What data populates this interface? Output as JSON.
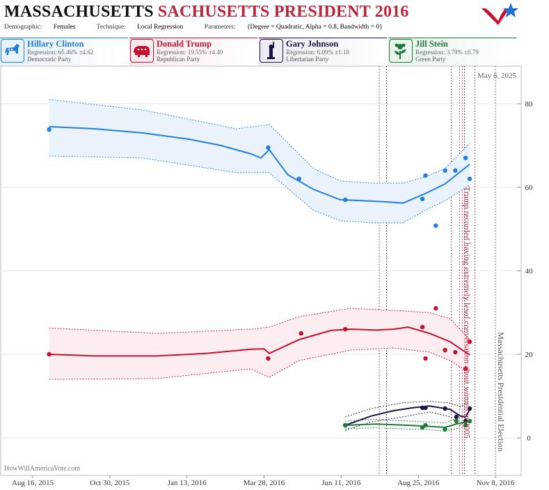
{
  "header": {
    "title_part1": "MASSACHUSETTS",
    "title_part2": "SACHUSETTS PRESIDENT 2016",
    "demographic_label": "Demographic:",
    "demographic_value": "Females",
    "technique_label": "Technique:",
    "technique_value": "Local Regression",
    "parameters_label": "Parameters:",
    "parameters_value": "{Degree = Quadratic, Alpha = 0.8, Bandwidth = 0}"
  },
  "candidates": [
    {
      "name": "Hillary Clinton",
      "regression": "Regression: 65.46% ±4.62",
      "party": "Democratic Party",
      "color": "#1e7fe0",
      "bg": "#e8f1fb",
      "icon": "donkey-icon"
    },
    {
      "name": "Donald Trump",
      "regression": "Regression: 19.55% ±4.49",
      "party": "Republican Party",
      "color": "#c8102e",
      "bg": "#fbe9ec",
      "icon": "elephant-icon"
    },
    {
      "name": "Gary Johnson",
      "regression": "Regression: 6.09% ±1.18",
      "party": "Libertarian Party",
      "color": "#1a1446",
      "bg": "#ecebf2",
      "icon": "liberty-statue-icon"
    },
    {
      "name": "Jill Stein",
      "regression": "Regression: 3.79% ±0.79",
      "party": "Green Party",
      "color": "#1f7a3a",
      "bg": "#e8f3ec",
      "icon": "flower-icon"
    }
  ],
  "chart_data": {
    "type": "line",
    "date_label": "May 6, 2025",
    "x_ticks": [
      "Aug 16, 2015",
      "Oct 30, 2015",
      "Jan 13, 2016",
      "Mar 28, 2016",
      "Jun 11, 2016",
      "Aug 25, 2016",
      "Nov 8, 2016"
    ],
    "y_ticks": [
      0,
      20,
      40,
      60,
      80
    ],
    "ylim": [
      -9,
      89
    ],
    "annotations": [
      {
        "text": "Trump recorded having extremely lewd conversation about women in 2005",
        "date": "2016-10-07",
        "color": "#b8253d"
      },
      {
        "text": "Massachusetts Presidential Election",
        "date": "2016-11-08",
        "color": "#555555"
      }
    ],
    "event_lines": [
      {
        "date": "2016-07-18",
        "color": "#b8253d"
      },
      {
        "date": "2016-07-25",
        "color": "#1a1446"
      },
      {
        "date": "2016-09-26",
        "color": "#b8253d"
      },
      {
        "date": "2016-10-04",
        "color": "#b8253d"
      },
      {
        "date": "2016-10-07",
        "color": "#b8253d"
      },
      {
        "date": "2016-10-09",
        "color": "#1a1446"
      },
      {
        "date": "2016-10-19",
        "color": "#b8253d"
      },
      {
        "date": "2016-11-08",
        "color": "#555555"
      }
    ],
    "series": [
      {
        "name": "Hillary Clinton",
        "color": "#1e7fe0",
        "fill": "#eaf3fc",
        "points": [
          [
            "2015-09-01",
            73.8
          ],
          [
            "2016-04-01",
            69.5
          ],
          [
            "2016-05-01",
            62.0
          ],
          [
            "2016-06-15",
            57.0
          ],
          [
            "2016-08-29",
            57.2
          ],
          [
            "2016-09-01",
            62.8
          ],
          [
            "2016-09-11",
            50.8
          ],
          [
            "2016-09-20",
            64.0
          ],
          [
            "2016-09-30",
            64.0
          ],
          [
            "2016-10-10",
            67.0
          ],
          [
            "2016-10-14",
            62.0
          ]
        ],
        "line": [
          [
            "2015-09-01",
            74.5
          ],
          [
            "2015-10-15",
            74.0
          ],
          [
            "2015-12-01",
            73.0
          ],
          [
            "2016-01-15",
            71.5
          ],
          [
            "2016-02-15",
            70.0
          ],
          [
            "2016-03-15",
            68.0
          ],
          [
            "2016-03-25",
            67.0
          ],
          [
            "2016-04-02",
            69.0
          ],
          [
            "2016-04-20",
            63.0
          ],
          [
            "2016-05-15",
            59.5
          ],
          [
            "2016-06-10",
            57.0
          ],
          [
            "2016-07-01",
            56.8
          ],
          [
            "2016-07-25",
            56.5
          ],
          [
            "2016-08-10",
            56.2
          ],
          [
            "2016-09-01",
            58.5
          ],
          [
            "2016-09-20",
            60.8
          ],
          [
            "2016-10-14",
            65.5
          ]
        ],
        "upper": [
          [
            "2015-09-01",
            81.0
          ],
          [
            "2015-12-01",
            78.5
          ],
          [
            "2016-03-01",
            74.0
          ],
          [
            "2016-04-02",
            75.0
          ],
          [
            "2016-05-15",
            64.5
          ],
          [
            "2016-06-10",
            61.5
          ],
          [
            "2016-07-10",
            61.0
          ],
          [
            "2016-08-10",
            61.0
          ],
          [
            "2016-09-01",
            62.5
          ],
          [
            "2016-09-20",
            64.5
          ],
          [
            "2016-10-14",
            70.5
          ]
        ],
        "lower": [
          [
            "2015-09-01",
            67.5
          ],
          [
            "2015-12-01",
            67.0
          ],
          [
            "2016-03-01",
            63.5
          ],
          [
            "2016-04-02",
            63.5
          ],
          [
            "2016-05-15",
            54.5
          ],
          [
            "2016-06-10",
            52.0
          ],
          [
            "2016-07-10",
            51.5
          ],
          [
            "2016-08-10",
            51.5
          ],
          [
            "2016-09-01",
            54.5
          ],
          [
            "2016-09-20",
            56.8
          ],
          [
            "2016-10-14",
            60.5
          ]
        ]
      },
      {
        "name": "Donald Trump",
        "color": "#c8102e",
        "fill": "#fcedf0",
        "points": [
          [
            "2015-09-01",
            20.0
          ],
          [
            "2016-04-01",
            19.0
          ],
          [
            "2016-05-03",
            25.0
          ],
          [
            "2016-06-15",
            26.0
          ],
          [
            "2016-08-29",
            26.5
          ],
          [
            "2016-09-01",
            19.0
          ],
          [
            "2016-09-11",
            31.0
          ],
          [
            "2016-09-20",
            21.0
          ],
          [
            "2016-09-30",
            20.5
          ],
          [
            "2016-10-10",
            16.5
          ],
          [
            "2016-10-14",
            23.0
          ]
        ],
        "line": [
          [
            "2015-09-01",
            20.0
          ],
          [
            "2015-10-15",
            19.6
          ],
          [
            "2015-12-15",
            19.6
          ],
          [
            "2016-02-01",
            20.2
          ],
          [
            "2016-03-15",
            21.2
          ],
          [
            "2016-03-28",
            21.3
          ],
          [
            "2016-04-02",
            20.2
          ],
          [
            "2016-05-01",
            23.5
          ],
          [
            "2016-06-01",
            25.7
          ],
          [
            "2016-06-20",
            26.0
          ],
          [
            "2016-07-15",
            25.8
          ],
          [
            "2016-08-01",
            26.0
          ],
          [
            "2016-08-15",
            26.5
          ],
          [
            "2016-09-05",
            25.0
          ],
          [
            "2016-09-25",
            23.0
          ],
          [
            "2016-10-14",
            19.8
          ]
        ],
        "upper": [
          [
            "2015-09-01",
            26.3
          ],
          [
            "2015-12-15",
            25.0
          ],
          [
            "2016-03-15",
            26.0
          ],
          [
            "2016-04-02",
            26.5
          ],
          [
            "2016-05-01",
            29.0
          ],
          [
            "2016-06-20",
            31.0
          ],
          [
            "2016-08-01",
            30.5
          ],
          [
            "2016-09-05",
            30.0
          ],
          [
            "2016-09-25",
            28.5
          ],
          [
            "2016-10-14",
            23.5
          ]
        ],
        "lower": [
          [
            "2015-09-01",
            14.0
          ],
          [
            "2015-12-15",
            14.2
          ],
          [
            "2016-03-15",
            16.5
          ],
          [
            "2016-04-02",
            14.5
          ],
          [
            "2016-05-01",
            18.5
          ],
          [
            "2016-06-20",
            21.0
          ],
          [
            "2016-08-01",
            21.5
          ],
          [
            "2016-09-05",
            20.5
          ],
          [
            "2016-09-25",
            18.5
          ],
          [
            "2016-10-14",
            15.5
          ]
        ]
      },
      {
        "name": "Gary Johnson",
        "color": "#1a1446",
        "fill": "none",
        "points": [
          [
            "2016-06-15",
            3.0
          ],
          [
            "2016-08-29",
            7.2
          ],
          [
            "2016-09-01",
            7.2
          ],
          [
            "2016-09-20",
            7.0
          ],
          [
            "2016-10-01",
            5.0
          ],
          [
            "2016-10-10",
            4.0
          ],
          [
            "2016-10-14",
            7.0
          ]
        ],
        "line": [
          [
            "2016-06-15",
            3.0
          ],
          [
            "2016-07-10",
            5.2
          ],
          [
            "2016-08-01",
            6.5
          ],
          [
            "2016-08-20",
            7.2
          ],
          [
            "2016-09-05",
            7.6
          ],
          [
            "2016-09-25",
            6.8
          ],
          [
            "2016-10-05",
            5.2
          ],
          [
            "2016-10-10",
            5.0
          ],
          [
            "2016-10-14",
            6.8
          ]
        ],
        "upper": [
          [
            "2016-06-15",
            5.0
          ],
          [
            "2016-07-10",
            7.0
          ],
          [
            "2016-08-10",
            8.4
          ],
          [
            "2016-09-05",
            8.8
          ],
          [
            "2016-09-25",
            8.3
          ],
          [
            "2016-10-05",
            7.5
          ],
          [
            "2016-10-14",
            8.5
          ]
        ],
        "lower": [
          [
            "2016-06-15",
            1.8
          ],
          [
            "2016-07-10",
            3.8
          ],
          [
            "2016-08-10",
            5.0
          ],
          [
            "2016-09-05",
            6.2
          ],
          [
            "2016-09-25",
            5.0
          ],
          [
            "2016-10-05",
            3.0
          ],
          [
            "2016-10-14",
            4.5
          ]
        ]
      },
      {
        "name": "Jill Stein",
        "color": "#1f7a3a",
        "fill": "none",
        "points": [
          [
            "2016-06-15",
            3.0
          ],
          [
            "2016-08-29",
            2.5
          ],
          [
            "2016-09-01",
            3.0
          ],
          [
            "2016-09-20",
            2.0
          ],
          [
            "2016-10-01",
            4.0
          ],
          [
            "2016-10-10",
            3.0
          ],
          [
            "2016-10-14",
            4.0
          ]
        ],
        "line": [
          [
            "2016-06-15",
            3.0
          ],
          [
            "2016-07-15",
            3.3
          ],
          [
            "2016-08-15",
            3.0
          ],
          [
            "2016-09-01",
            2.8
          ],
          [
            "2016-09-20",
            2.5
          ],
          [
            "2016-10-01",
            3.3
          ],
          [
            "2016-10-14",
            4.0
          ]
        ],
        "upper": [
          [
            "2016-06-15",
            4.0
          ],
          [
            "2016-07-15",
            4.4
          ],
          [
            "2016-08-15",
            4.0
          ],
          [
            "2016-09-01",
            3.8
          ],
          [
            "2016-09-20",
            3.6
          ],
          [
            "2016-10-01",
            4.5
          ],
          [
            "2016-10-14",
            5.2
          ]
        ],
        "lower": [
          [
            "2016-06-15",
            2.2
          ],
          [
            "2016-07-15",
            2.4
          ],
          [
            "2016-08-15",
            2.1
          ],
          [
            "2016-09-01",
            2.0
          ],
          [
            "2016-09-20",
            1.6
          ],
          [
            "2016-10-01",
            2.2
          ],
          [
            "2016-10-14",
            2.8
          ]
        ]
      }
    ]
  },
  "footer": {
    "source": "HowWillAmericaVote.com"
  }
}
